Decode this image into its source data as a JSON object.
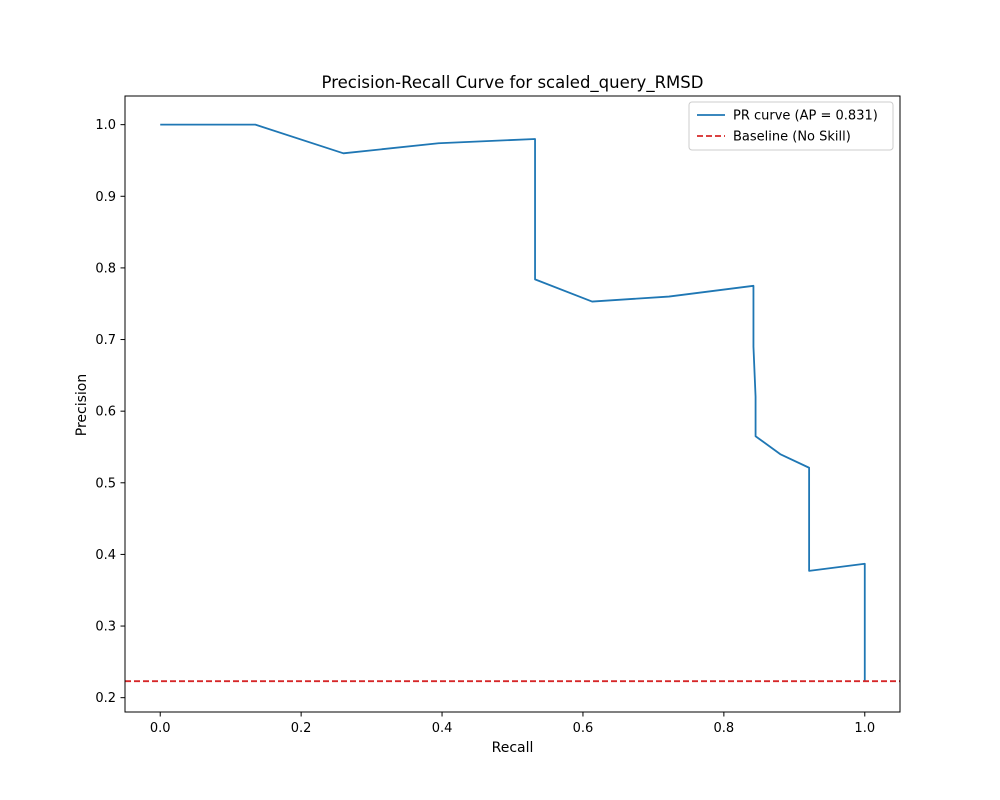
{
  "chart_data": {
    "type": "line",
    "title": "Precision-Recall Curve for scaled_query_RMSD",
    "xlabel": "Recall",
    "ylabel": "Precision",
    "xlim": [
      -0.05,
      1.05
    ],
    "ylim": [
      0.18,
      1.04
    ],
    "x_ticks": [
      0.0,
      0.2,
      0.4,
      0.6,
      0.8,
      1.0
    ],
    "x_tick_labels": [
      "0.0",
      "0.2",
      "0.4",
      "0.6",
      "0.8",
      "1.0"
    ],
    "y_ticks": [
      0.2,
      0.3,
      0.4,
      0.5,
      0.6,
      0.7,
      0.8,
      0.9,
      1.0
    ],
    "y_tick_labels": [
      "0.2",
      "0.3",
      "0.4",
      "0.5",
      "0.6",
      "0.7",
      "0.8",
      "0.9",
      "1.0"
    ],
    "grid": false,
    "legend_position": "top-right",
    "series": [
      {
        "name": "PR curve (AP = 0.831)",
        "color": "#1f77b4",
        "style": "solid",
        "points": [
          [
            0.0,
            1.0
          ],
          [
            0.135,
            1.0
          ],
          [
            0.26,
            0.96
          ],
          [
            0.395,
            0.974
          ],
          [
            0.532,
            0.98
          ],
          [
            0.532,
            0.784
          ],
          [
            0.613,
            0.753
          ],
          [
            0.722,
            0.76
          ],
          [
            0.842,
            0.775
          ],
          [
            0.842,
            0.69
          ],
          [
            0.845,
            0.62
          ],
          [
            0.845,
            0.565
          ],
          [
            0.88,
            0.54
          ],
          [
            0.921,
            0.521
          ],
          [
            0.921,
            0.377
          ],
          [
            1.0,
            0.387
          ],
          [
            1.0,
            0.223
          ]
        ]
      },
      {
        "name": "Baseline (No Skill)",
        "color": "#d62728",
        "style": "dashed",
        "y": 0.223
      }
    ]
  }
}
